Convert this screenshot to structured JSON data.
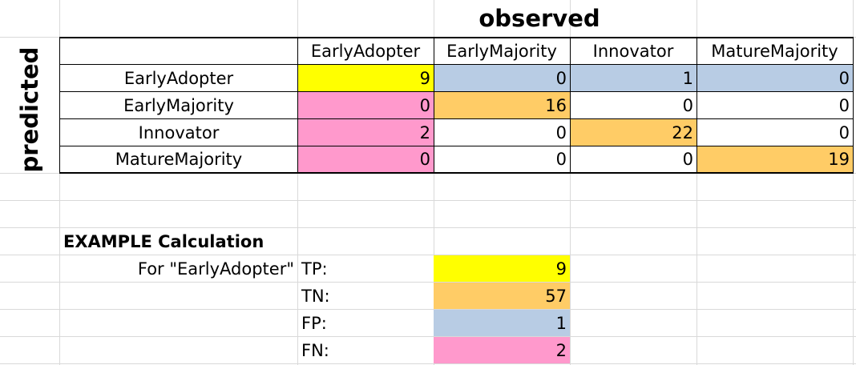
{
  "titles": {
    "observed": "observed",
    "predicted": "predicted"
  },
  "matrix": {
    "columns": [
      "EarlyAdopter",
      "EarlyMajority",
      "Innovator",
      "MatureMajority"
    ],
    "rows": [
      {
        "label": "EarlyAdopter",
        "values": [
          "9",
          "0",
          "1",
          "0"
        ]
      },
      {
        "label": "EarlyMajority",
        "values": [
          "0",
          "16",
          "0",
          "0"
        ]
      },
      {
        "label": "Innovator",
        "values": [
          "2",
          "0",
          "22",
          "0"
        ]
      },
      {
        "label": "MatureMajority",
        "values": [
          "0",
          "0",
          "0",
          "19"
        ]
      }
    ]
  },
  "example": {
    "heading": "EXAMPLE Calculation",
    "for_label": "For \"EarlyAdopter\"",
    "items": [
      {
        "label": "TP:",
        "value": "9"
      },
      {
        "label": "TN:",
        "value": "57"
      },
      {
        "label": "FP:",
        "value": "1"
      },
      {
        "label": "FN:",
        "value": "2"
      }
    ]
  },
  "colors": {
    "tp": "#ffff00",
    "tn": "#ffcc66",
    "fp": "#b8cce4",
    "fn": "#ff99cc",
    "gridline": "#d9d9d9"
  }
}
